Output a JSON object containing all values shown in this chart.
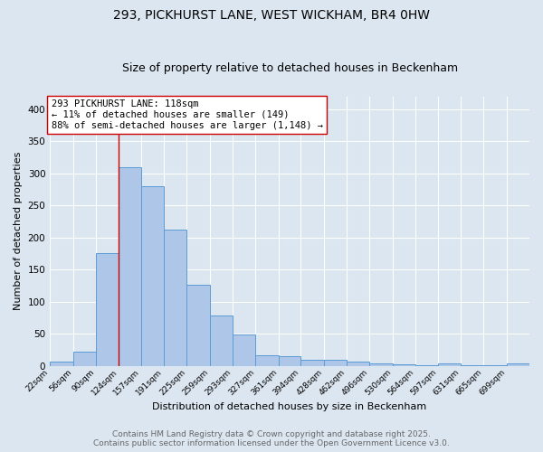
{
  "title_line1": "293, PICKHURST LANE, WEST WICKHAM, BR4 0HW",
  "title_line2": "Size of property relative to detached houses in Beckenham",
  "xlabel": "Distribution of detached houses by size in Beckenham",
  "ylabel": "Number of detached properties",
  "bin_edges": [
    22,
    56,
    90,
    124,
    157,
    191,
    225,
    259,
    293,
    327,
    361,
    394,
    428,
    462,
    496,
    530,
    564,
    597,
    631,
    665,
    699,
    733
  ],
  "bin_labels": [
    "22sqm",
    "56sqm",
    "90sqm",
    "124sqm",
    "157sqm",
    "191sqm",
    "225sqm",
    "259sqm",
    "293sqm",
    "327sqm",
    "361sqm",
    "394sqm",
    "428sqm",
    "462sqm",
    "496sqm",
    "530sqm",
    "564sqm",
    "597sqm",
    "631sqm",
    "665sqm",
    "699sqm"
  ],
  "values": [
    7,
    22,
    175,
    310,
    280,
    213,
    126,
    78,
    49,
    16,
    15,
    9,
    9,
    6,
    3,
    2,
    1,
    4,
    1,
    1,
    4
  ],
  "bar_color": "#aec6e8",
  "bar_edgecolor": "#5b9bd5",
  "vline_x": 124,
  "vline_color": "#cc0000",
  "annotation_text": "293 PICKHURST LANE: 118sqm\n← 11% of detached houses are smaller (149)\n88% of semi-detached houses are larger (1,148) →",
  "annotation_box_color": "#ffffff",
  "annotation_box_edgecolor": "#cc0000",
  "ylim": [
    0,
    420
  ],
  "yticks": [
    0,
    50,
    100,
    150,
    200,
    250,
    300,
    350,
    400
  ],
  "bg_color": "#dce6f0",
  "footer_line1": "Contains HM Land Registry data © Crown copyright and database right 2025.",
  "footer_line2": "Contains public sector information licensed under the Open Government Licence v3.0.",
  "footer_fontsize": 6.5,
  "annotation_fontsize": 7.5,
  "title_fontsize1": 10,
  "title_fontsize2": 9,
  "xlabel_fontsize": 8,
  "ylabel_fontsize": 8
}
